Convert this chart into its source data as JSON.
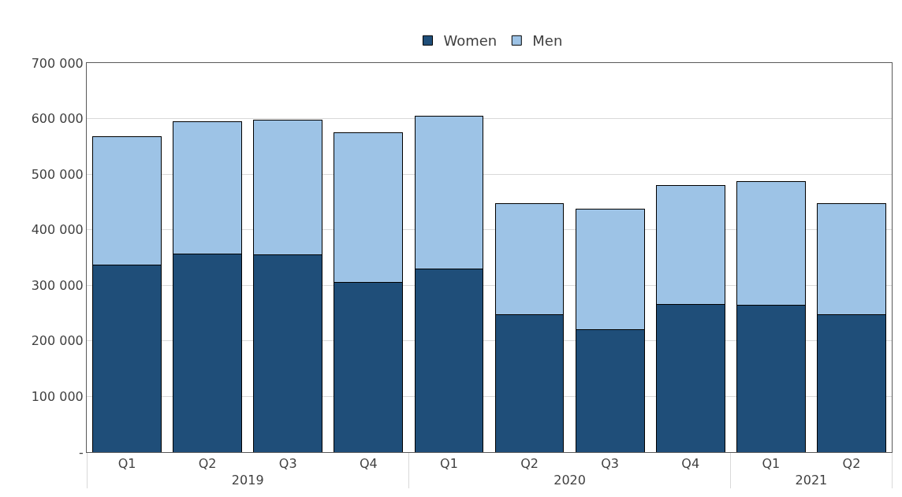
{
  "chart_data": {
    "type": "bar",
    "stacked": true,
    "categories": [
      "Q1",
      "Q2",
      "Q3",
      "Q4",
      "Q1",
      "Q2",
      "Q3",
      "Q4",
      "Q1",
      "Q2"
    ],
    "annotations": [
      "2019",
      "2020",
      "2021"
    ],
    "series": [
      {
        "name": "Women",
        "color": "#1f4e79",
        "values": [
          337000,
          356000,
          355000,
          305000,
          329000,
          247000,
          221000,
          266000,
          264000,
          247000
        ]
      },
      {
        "name": "Men",
        "color": "#9dc3e6",
        "values": [
          231000,
          239000,
          242000,
          269000,
          276000,
          200000,
          216000,
          214000,
          223000,
          200000
        ]
      }
    ],
    "ylim": [
      0,
      700000
    ],
    "yticks": [
      {
        "value": 0,
        "label": "-"
      },
      {
        "value": 100000,
        "label": "100 000"
      },
      {
        "value": 200000,
        "label": "200 000"
      },
      {
        "value": 300000,
        "label": "300 000"
      },
      {
        "value": 400000,
        "label": "400 000"
      },
      {
        "value": 500000,
        "label": "500 000"
      },
      {
        "value": 600000,
        "label": "600 000"
      },
      {
        "value": 700000,
        "label": "700 000"
      }
    ],
    "grid": "y",
    "legend": "top"
  }
}
